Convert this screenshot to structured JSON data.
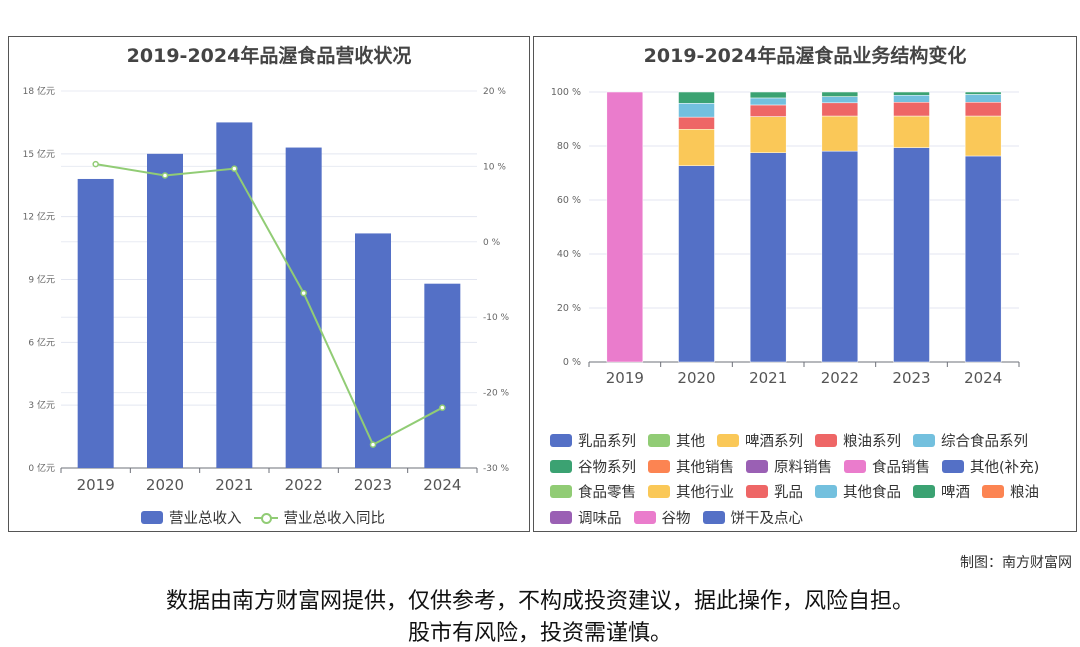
{
  "chart_data": [
    {
      "type": "bar",
      "title": "2019-2024年品渥食品营收状况",
      "categories": [
        "2019",
        "2020",
        "2021",
        "2022",
        "2023",
        "2024"
      ],
      "series": [
        {
          "name": "营业总收入",
          "type": "bar",
          "axis": "left",
          "color": "#5470c6",
          "values": [
            13.8,
            15.0,
            16.5,
            15.3,
            11.2,
            8.8
          ]
        },
        {
          "name": "营业总收入同比",
          "type": "line",
          "axis": "right",
          "color": "#91cc75",
          "values": [
            10.3,
            8.8,
            9.7,
            -6.8,
            -26.9,
            -22.0
          ]
        }
      ],
      "y_left": {
        "ticks": [
          "0 亿元",
          "3 亿元",
          "6 亿元",
          "9 亿元",
          "12 亿元",
          "15 亿元",
          "18 亿元"
        ],
        "range": [
          0,
          18
        ],
        "unit": "亿元"
      },
      "y_right": {
        "ticks": [
          "-30 %",
          "-20 %",
          "-10 %",
          "0 %",
          "10 %",
          "20 %"
        ],
        "range": [
          -30,
          20
        ],
        "unit": "%"
      },
      "grid": true,
      "legend": "bottom"
    },
    {
      "type": "bar",
      "stacked": true,
      "title": "2019-2024年品渥食品业务结构变化",
      "categories": [
        "2019",
        "2020",
        "2021",
        "2022",
        "2023",
        "2024"
      ],
      "y_axis": {
        "ticks": [
          "0 %",
          "20 %",
          "40 %",
          "60 %",
          "80 %",
          "100 %"
        ],
        "range": [
          0,
          100
        ],
        "unit": "%"
      },
      "grid": true,
      "legend": "bottom",
      "series": [
        {
          "name": "乳品系列",
          "color": "#5470c6",
          "values": [
            0,
            72.7,
            77.5,
            78.1,
            79.4,
            76.3
          ]
        },
        {
          "name": "其他",
          "color": "#91cc75",
          "values": [
            0,
            0,
            0,
            0,
            0,
            0
          ]
        },
        {
          "name": "啤酒系列",
          "color": "#fac858",
          "values": [
            0,
            13.5,
            13.4,
            13.0,
            11.7,
            14.8
          ]
        },
        {
          "name": "粮油系列",
          "color": "#ee6666",
          "values": [
            0,
            4.5,
            4.3,
            4.9,
            5.1,
            5.1
          ]
        },
        {
          "name": "综合食品系列",
          "color": "#73c0de",
          "values": [
            0,
            5.1,
            2.6,
            2.3,
            2.6,
            2.9
          ]
        },
        {
          "name": "谷物系列",
          "color": "#3ba272",
          "values": [
            0,
            4.2,
            2.2,
            1.7,
            1.2,
            0.9
          ]
        },
        {
          "name": "其他销售",
          "color": "#fc8452",
          "values": [
            0,
            0,
            0,
            0,
            0,
            0
          ]
        },
        {
          "name": "原料销售",
          "color": "#9a60b4",
          "values": [
            0,
            0,
            0,
            0,
            0,
            0
          ]
        },
        {
          "name": "食品销售",
          "color": "#ea7ccc",
          "values": [
            100,
            0,
            0,
            0,
            0,
            0
          ]
        },
        {
          "name": "其他(补充)",
          "color": "#5470c6",
          "values": [
            0,
            0,
            0,
            0,
            0,
            0
          ]
        },
        {
          "name": "食品零售",
          "color": "#91cc75",
          "values": [
            0,
            0,
            0,
            0,
            0,
            0
          ]
        },
        {
          "name": "其他行业",
          "color": "#fac858",
          "values": [
            0,
            0,
            0,
            0,
            0,
            0
          ]
        },
        {
          "name": "乳品",
          "color": "#ee6666",
          "values": [
            0,
            0,
            0,
            0,
            0,
            0
          ]
        },
        {
          "name": "其他食品",
          "color": "#73c0de",
          "values": [
            0,
            0,
            0,
            0,
            0,
            0
          ]
        },
        {
          "name": "啤酒",
          "color": "#3ba272",
          "values": [
            0,
            0,
            0,
            0,
            0,
            0
          ]
        },
        {
          "name": "粮油",
          "color": "#fc8452",
          "values": [
            0,
            0,
            0,
            0,
            0,
            0
          ]
        },
        {
          "name": "调味品",
          "color": "#9a60b4",
          "values": [
            0,
            0,
            0,
            0,
            0,
            0
          ]
        },
        {
          "name": "谷物",
          "color": "#ea7ccc",
          "values": [
            0,
            0,
            0,
            0,
            0,
            0
          ]
        },
        {
          "name": "饼干及点心",
          "color": "#5470c6",
          "values": [
            0,
            0,
            0,
            0,
            0,
            0
          ]
        }
      ]
    }
  ],
  "credit": "制图：南方财富网",
  "disclaimer": [
    "数据由南方财富网提供，仅供参考，不构成投资建议，据此操作，风险自担。",
    "股市有风险，投资需谨慎。"
  ]
}
